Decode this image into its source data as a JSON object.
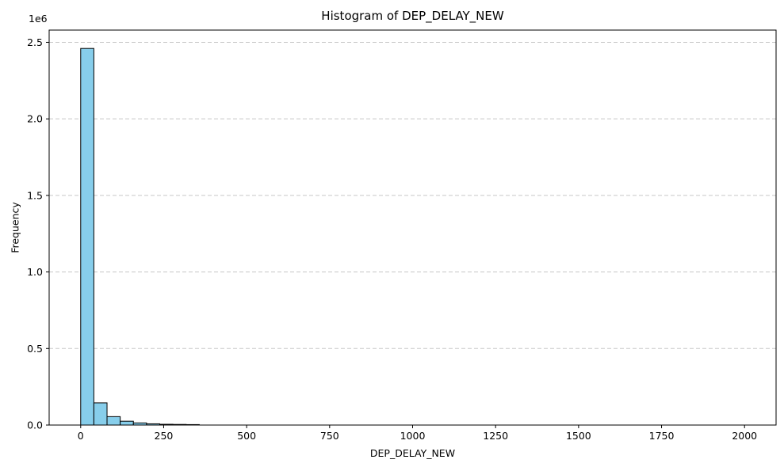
{
  "chart_data": {
    "type": "bar",
    "title": "Histogram of DEP_DELAY_NEW",
    "xlabel": "DEP_DELAY_NEW",
    "ylabel": "Frequency",
    "y_offset_label": "1e6",
    "xlim": [
      -95,
      2095
    ],
    "ylim": [
      0,
      2.58
    ],
    "xticks": [
      0,
      250,
      500,
      750,
      1000,
      1250,
      1500,
      1750,
      2000
    ],
    "xtick_labels": [
      "0",
      "250",
      "500",
      "750",
      "1000",
      "1250",
      "1500",
      "1750",
      "2000"
    ],
    "yticks": [
      0,
      0.5,
      1.0,
      1.5,
      2.0,
      2.5
    ],
    "ytick_labels": [
      "0.0",
      "0.5",
      "1.0",
      "1.5",
      "2.0",
      "2.5"
    ],
    "grid": "y-dashed",
    "bins": {
      "start": 0,
      "width": 39.7,
      "values": [
        2.46,
        0.145,
        0.055,
        0.025,
        0.014,
        0.008,
        0.005,
        0.004,
        0.003
      ]
    },
    "colors": {
      "bar_fill": "#87CEEB",
      "bar_edge": "#000000",
      "grid": "#c8c8c8"
    }
  }
}
